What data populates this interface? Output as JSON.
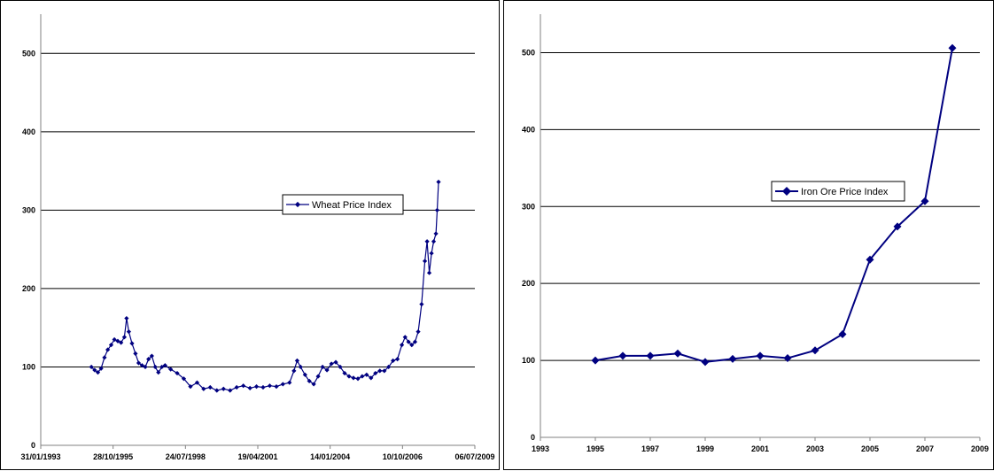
{
  "colors": {
    "series": "#000080",
    "grid": "#000000",
    "axis": "#808080",
    "background": "#ffffff"
  },
  "chart_data": [
    {
      "type": "line",
      "title": "",
      "xlabel": "",
      "ylabel": "",
      "x_type": "date",
      "xlim": [
        "1993-01-31",
        "2009-07-06"
      ],
      "ylim": [
        0,
        550
      ],
      "x_tick_labels": [
        "31/01/1993",
        "28/10/1995",
        "24/07/1998",
        "19/04/2001",
        "14/01/2004",
        "10/10/2006",
        "06/07/2009"
      ],
      "y_ticks": [
        0,
        100,
        200,
        300,
        400,
        500
      ],
      "grid": "horizontal",
      "legend": "center-right",
      "marker": "diamond",
      "series": [
        {
          "name": "Wheat Price Index",
          "points": [
            [
              "1995-01-01",
              100
            ],
            [
              "1995-02-15",
              96
            ],
            [
              "1995-04-01",
              93
            ],
            [
              "1995-05-15",
              98
            ],
            [
              "1995-07-01",
              112
            ],
            [
              "1995-08-15",
              122
            ],
            [
              "1995-10-01",
              128
            ],
            [
              "1995-11-15",
              135
            ],
            [
              "1996-01-01",
              133
            ],
            [
              "1996-02-15",
              131
            ],
            [
              "1996-04-01",
              138
            ],
            [
              "1996-05-01",
              162
            ],
            [
              "1996-06-01",
              145
            ],
            [
              "1996-07-15",
              130
            ],
            [
              "1996-09-01",
              117
            ],
            [
              "1996-10-15",
              105
            ],
            [
              "1996-12-01",
              102
            ],
            [
              "1997-01-15",
              100
            ],
            [
              "1997-03-01",
              110
            ],
            [
              "1997-04-15",
              114
            ],
            [
              "1997-06-01",
              100
            ],
            [
              "1997-07-15",
              93
            ],
            [
              "1997-09-01",
              100
            ],
            [
              "1997-10-15",
              102
            ],
            [
              "1998-01-01",
              97
            ],
            [
              "1998-04-01",
              92
            ],
            [
              "1998-07-01",
              85
            ],
            [
              "1998-10-01",
              75
            ],
            [
              "1999-01-01",
              80
            ],
            [
              "1999-04-01",
              72
            ],
            [
              "1999-07-01",
              74
            ],
            [
              "1999-10-01",
              70
            ],
            [
              "2000-01-01",
              72
            ],
            [
              "2000-04-01",
              70
            ],
            [
              "2000-07-01",
              74
            ],
            [
              "2000-10-01",
              76
            ],
            [
              "2001-01-01",
              73
            ],
            [
              "2001-04-01",
              75
            ],
            [
              "2001-07-01",
              74
            ],
            [
              "2001-10-01",
              76
            ],
            [
              "2002-01-01",
              75
            ],
            [
              "2002-04-01",
              78
            ],
            [
              "2002-07-01",
              80
            ],
            [
              "2002-09-01",
              95
            ],
            [
              "2002-10-15",
              108
            ],
            [
              "2002-12-01",
              100
            ],
            [
              "2003-02-01",
              90
            ],
            [
              "2003-04-01",
              82
            ],
            [
              "2003-06-01",
              78
            ],
            [
              "2003-08-01",
              88
            ],
            [
              "2003-10-01",
              100
            ],
            [
              "2003-12-01",
              96
            ],
            [
              "2004-02-01",
              104
            ],
            [
              "2004-04-01",
              106
            ],
            [
              "2004-06-01",
              100
            ],
            [
              "2004-08-01",
              92
            ],
            [
              "2004-10-01",
              88
            ],
            [
              "2004-12-01",
              86
            ],
            [
              "2005-02-01",
              85
            ],
            [
              "2005-04-01",
              88
            ],
            [
              "2005-06-01",
              90
            ],
            [
              "2005-08-01",
              86
            ],
            [
              "2005-10-01",
              92
            ],
            [
              "2005-12-01",
              95
            ],
            [
              "2006-02-01",
              95
            ],
            [
              "2006-04-01",
              100
            ],
            [
              "2006-06-01",
              108
            ],
            [
              "2006-08-01",
              110
            ],
            [
              "2006-10-01",
              128
            ],
            [
              "2006-11-15",
              138
            ],
            [
              "2007-01-01",
              132
            ],
            [
              "2007-02-15",
              128
            ],
            [
              "2007-04-01",
              132
            ],
            [
              "2007-05-15",
              145
            ],
            [
              "2007-07-01",
              180
            ],
            [
              "2007-08-15",
              235
            ],
            [
              "2007-09-15",
              260
            ],
            [
              "2007-10-15",
              220
            ],
            [
              "2007-11-15",
              245
            ],
            [
              "2007-12-15",
              260
            ],
            [
              "2008-01-15",
              270
            ],
            [
              "2008-02-01",
              300
            ],
            [
              "2008-02-20",
              336
            ]
          ]
        }
      ]
    },
    {
      "type": "line",
      "title": "",
      "xlabel": "",
      "ylabel": "",
      "xlim": [
        1993,
        2009
      ],
      "ylim": [
        0,
        550
      ],
      "x_ticks": [
        1993,
        1995,
        1997,
        1999,
        2001,
        2003,
        2005,
        2007,
        2009
      ],
      "y_ticks": [
        0,
        100,
        200,
        300,
        400,
        500
      ],
      "grid": "horizontal",
      "legend": "center-right",
      "marker": "diamond",
      "series": [
        {
          "name": "Iron Ore Price Index",
          "x": [
            1995,
            1996,
            1997,
            1998,
            1999,
            2000,
            2001,
            2002,
            2003,
            2004,
            2005,
            2006,
            2007,
            2008
          ],
          "values": [
            100,
            106,
            106,
            109,
            98,
            102,
            106,
            103,
            113,
            134,
            231,
            274,
            307,
            506
          ]
        }
      ]
    }
  ]
}
